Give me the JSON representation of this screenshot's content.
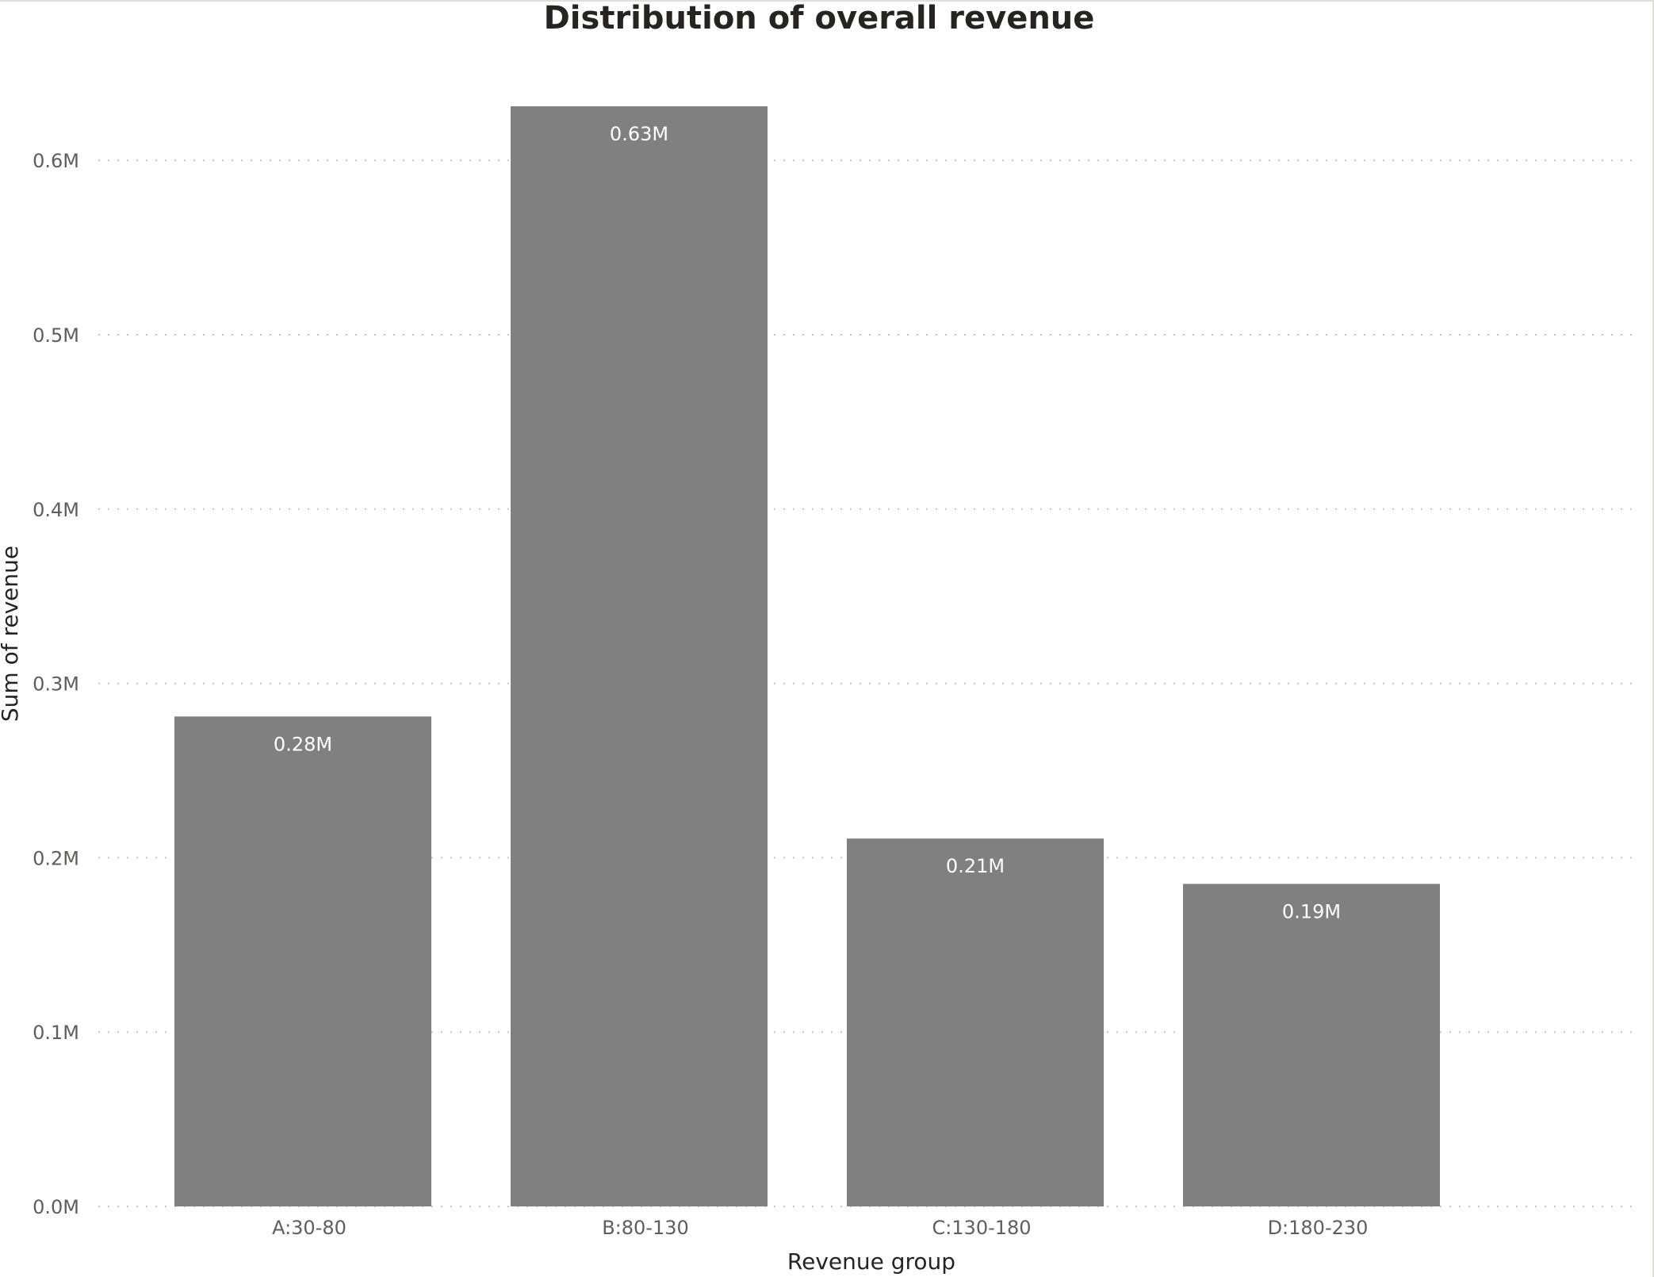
{
  "chart_data": {
    "type": "bar",
    "title": "Distribution of overall revenue",
    "xlabel": "Revenue group",
    "ylabel": "Sum of revenue",
    "categories": [
      "A:30-80",
      "B:80-130",
      "C:130-180",
      "D:180-230"
    ],
    "values": [
      281000,
      631000,
      211000,
      185000
    ],
    "data_labels": [
      "0.28M",
      "0.63M",
      "0.21M",
      "0.19M"
    ],
    "y_ticks": [
      0,
      100000,
      200000,
      300000,
      400000,
      500000,
      600000
    ],
    "y_tick_labels": [
      "0.0M",
      "0.1M",
      "0.2M",
      "0.3M",
      "0.4M",
      "0.5M",
      "0.6M"
    ],
    "ylim": [
      0,
      631000
    ],
    "grid": true,
    "legend": "none",
    "bar_color": "#808080"
  }
}
